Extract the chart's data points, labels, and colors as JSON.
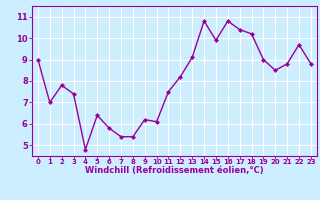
{
  "x": [
    0,
    1,
    2,
    3,
    4,
    5,
    6,
    7,
    8,
    9,
    10,
    11,
    12,
    13,
    14,
    15,
    16,
    17,
    18,
    19,
    20,
    21,
    22,
    23
  ],
  "y": [
    9.0,
    7.0,
    7.8,
    7.4,
    4.8,
    6.4,
    5.8,
    5.4,
    5.4,
    6.2,
    6.1,
    7.5,
    8.2,
    9.1,
    10.8,
    9.9,
    10.8,
    10.4,
    10.2,
    9.0,
    8.5,
    8.8,
    9.7,
    8.8
  ],
  "line_color": "#990099",
  "marker": "D",
  "marker_size": 2,
  "bg_color": "#cceeff",
  "grid_color": "#ffffff",
  "xlabel": "Windchill (Refroidissement éolien,°C)",
  "xlabel_color": "#990099",
  "tick_color": "#990099",
  "xlim": [
    -0.5,
    23.5
  ],
  "ylim": [
    4.5,
    11.5
  ],
  "yticks": [
    5,
    6,
    7,
    8,
    9,
    10,
    11
  ],
  "xticks": [
    0,
    1,
    2,
    3,
    4,
    5,
    6,
    7,
    8,
    9,
    10,
    11,
    12,
    13,
    14,
    15,
    16,
    17,
    18,
    19,
    20,
    21,
    22,
    23
  ],
  "line_width": 1.0,
  "spine_color": "#990099"
}
